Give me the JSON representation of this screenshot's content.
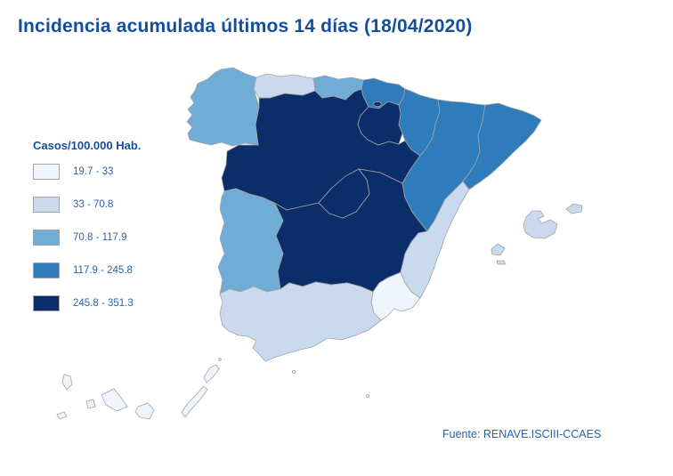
{
  "title": "Incidencia acumulada últimos 14 días (18/04/2020)",
  "legend": {
    "title": "Casos/100.000 Hab.",
    "classes": [
      {
        "label": "19.7 - 33",
        "color": "#eff5fc"
      },
      {
        "label": "33 - 70.8",
        "color": "#c9daef"
      },
      {
        "label": "70.8 - 117.9",
        "color": "#6fadd6"
      },
      {
        "label": "117.9 - 245.8",
        "color": "#2e7cbc"
      },
      {
        "label": "245.8 - 351.3",
        "color": "#0b2e6a"
      }
    ]
  },
  "source": {
    "text": "Fuente: RENAVE.ISCIII-CCAES"
  },
  "theme": {
    "title_color": "#134f9e",
    "label_color": "#2a62ae",
    "map_border_color": "#a3a3a3",
    "background": "#ffffff"
  },
  "chart_data": {
    "type": "choropleth",
    "title": "Incidencia acumulada últimos 14 días (18/04/2020)",
    "unit": "Casos/100.000 Hab.",
    "bins": [
      "19.7 - 33",
      "33 - 70.8",
      "70.8 - 117.9",
      "117.9 - 245.8",
      "245.8 - 351.3"
    ],
    "legend_position": "left",
    "regions": [
      {
        "id": "galicia",
        "name": "Galicia",
        "class_index": 2,
        "range": "70.8 - 117.9"
      },
      {
        "id": "asturias",
        "name": "Asturias",
        "class_index": 1,
        "range": "33 - 70.8"
      },
      {
        "id": "cantabria",
        "name": "Cantabria",
        "class_index": 2,
        "range": "70.8 - 117.9"
      },
      {
        "id": "pais_vasco",
        "name": "País Vasco",
        "class_index": 3,
        "range": "117.9 - 245.8"
      },
      {
        "id": "navarra",
        "name": "Navarra",
        "class_index": 3,
        "range": "117.9 - 245.8"
      },
      {
        "id": "la_rioja",
        "name": "La Rioja",
        "class_index": 4,
        "range": "245.8 - 351.3"
      },
      {
        "id": "aragon",
        "name": "Aragón",
        "class_index": 3,
        "range": "117.9 - 245.8"
      },
      {
        "id": "cataluna",
        "name": "Cataluña",
        "class_index": 3,
        "range": "117.9 - 245.8"
      },
      {
        "id": "castilla_y_leon",
        "name": "Castilla y León",
        "class_index": 4,
        "range": "245.8 - 351.3"
      },
      {
        "id": "madrid",
        "name": "Comunidad de Madrid",
        "class_index": 4,
        "range": "245.8 - 351.3"
      },
      {
        "id": "castilla_la_mancha",
        "name": "Castilla-La Mancha",
        "class_index": 4,
        "range": "245.8 - 351.3"
      },
      {
        "id": "comunidad_valenciana",
        "name": "Comunidad Valenciana",
        "class_index": 1,
        "range": "33 - 70.8"
      },
      {
        "id": "murcia",
        "name": "Región de Murcia",
        "class_index": 0,
        "range": "19.7 - 33"
      },
      {
        "id": "extremadura",
        "name": "Extremadura",
        "class_index": 2,
        "range": "70.8 - 117.9"
      },
      {
        "id": "andalucia",
        "name": "Andalucía",
        "class_index": 1,
        "range": "33 - 70.8"
      },
      {
        "id": "baleares",
        "name": "Islas Baleares",
        "class_index": 1,
        "range": "33 - 70.8"
      },
      {
        "id": "canarias",
        "name": "Canarias",
        "class_index": 0,
        "range": "19.7 - 33"
      },
      {
        "id": "ceuta",
        "name": "Ceuta",
        "class_index": 0,
        "range": "19.7 - 33"
      },
      {
        "id": "melilla",
        "name": "Melilla",
        "class_index": 0,
        "range": "19.7 - 33"
      }
    ]
  }
}
